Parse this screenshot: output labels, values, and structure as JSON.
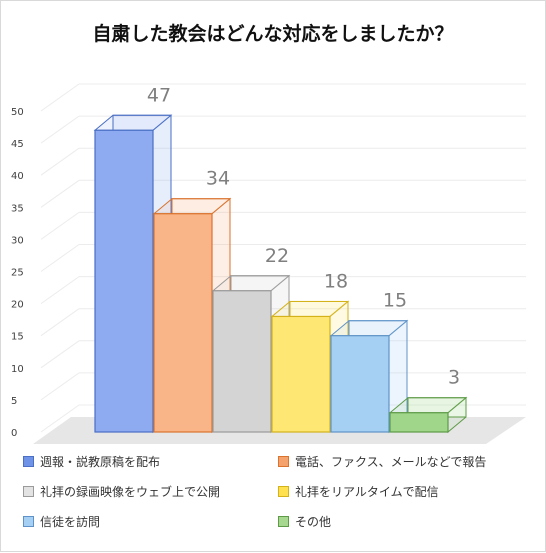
{
  "chart_data": {
    "type": "bar",
    "title": "自粛した教会はどんな対応をしましたか？",
    "ylim": [
      0,
      50
    ],
    "yticks": [
      0,
      5,
      10,
      15,
      20,
      25,
      30,
      35,
      40,
      45,
      50
    ],
    "grid": true,
    "legend_position": "bottom",
    "categories": [
      "週報・説教原稿を配布",
      "電話、ファクス、メールなどで報告",
      "礼拝の録画映像をウェブ上で公開",
      "礼拝をリアルタイムで配信",
      "信徒を訪問",
      "その他"
    ],
    "values": [
      47,
      34,
      22,
      18,
      15,
      3
    ],
    "colors": [
      {
        "face": "#8eaaf0",
        "edge": "#4a6fc4",
        "swatch": "#6f93e6"
      },
      {
        "face": "#f9b487",
        "edge": "#d9732e",
        "swatch": "#f6a26d"
      },
      {
        "face": "#d4d4d4",
        "edge": "#9a9a9a",
        "swatch": "#e3e3e3"
      },
      {
        "face": "#ffe773",
        "edge": "#d3b21a",
        "swatch": "#ffe14f"
      },
      {
        "face": "#a6d0f3",
        "edge": "#5f93c8",
        "swatch": "#a6d0f3"
      },
      {
        "face": "#9fd68a",
        "edge": "#5d9b46",
        "swatch": "#a6d98f"
      }
    ]
  }
}
